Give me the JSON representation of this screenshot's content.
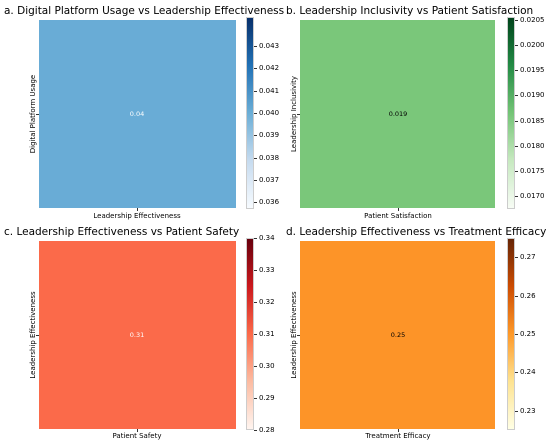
{
  "chart_data": [
    {
      "type": "heatmap",
      "title": "a. Digital Platform Usage vs Leadership Effectiveness",
      "xlabel": "Leadership Effectiveness",
      "ylabel": "Digital Platform Usage",
      "values": [
        [
          0.04
        ]
      ],
      "value_labels": [
        "0.04"
      ],
      "cell_color": "#69acd6",
      "value_text_color": "#ffffff",
      "colorbar": {
        "range": [
          0.0357,
          0.0443
        ],
        "ticks": [
          "0.043",
          "0.042",
          "0.041",
          "0.040",
          "0.039",
          "0.038",
          "0.037",
          "0.036"
        ],
        "tick_values": [
          0.043,
          0.042,
          0.041,
          0.04,
          0.039,
          0.038,
          0.037,
          0.036
        ],
        "gradient": [
          "#f7fbff",
          "#c6dbef",
          "#6baed6",
          "#2171b5",
          "#08306b"
        ]
      }
    },
    {
      "type": "heatmap",
      "title": "b. Leadership Inclusivity vs Patient Satisfaction",
      "xlabel": "Patient Satisfaction",
      "ylabel": "Leadership Inclusivity",
      "values": [
        [
          0.019
        ]
      ],
      "value_labels": [
        "0.019"
      ],
      "cell_color": "#7ac77a",
      "value_text_color": "#000000",
      "colorbar": {
        "range": [
          0.01675,
          0.02055
        ],
        "ticks": [
          "0.0205",
          "0.0200",
          "0.0195",
          "0.0190",
          "0.0185",
          "0.0180",
          "0.0175",
          "0.0170"
        ],
        "tick_values": [
          0.0205,
          0.02,
          0.0195,
          0.019,
          0.0185,
          0.018,
          0.0175,
          0.017
        ],
        "gradient": [
          "#f7fcf5",
          "#c7e9c0",
          "#74c476",
          "#238b45",
          "#00441b"
        ]
      }
    },
    {
      "type": "heatmap",
      "title": "c. Leadership Effectiveness vs Patient Safety",
      "xlabel": "Patient Safety",
      "ylabel": "Leadership Effectiveness",
      "values": [
        [
          0.31
        ]
      ],
      "value_labels": [
        "0.31"
      ],
      "cell_color": "#fb6a4a",
      "value_text_color": "#ffffff",
      "colorbar": {
        "range": [
          0.28,
          0.34
        ],
        "ticks": [
          "0.34",
          "0.33",
          "0.32",
          "0.31",
          "0.30",
          "0.29",
          "0.28"
        ],
        "tick_values": [
          0.34,
          0.33,
          0.32,
          0.31,
          0.3,
          0.29,
          0.28
        ],
        "gradient": [
          "#fff5f0",
          "#fcbba1",
          "#fb6a4a",
          "#cb181d",
          "#67000d"
        ]
      }
    },
    {
      "type": "heatmap",
      "title": "d. Leadership Effectiveness vs Treatment Efficacy",
      "xlabel": "Treatment Efficacy",
      "ylabel": "Leadership Effectiveness",
      "values": [
        [
          0.25
        ]
      ],
      "value_labels": [
        "0.25"
      ],
      "cell_color": "#fd9428",
      "value_text_color": "#000000",
      "colorbar": {
        "range": [
          0.225,
          0.275
        ],
        "ticks": [
          "0.27",
          "0.26",
          "0.25",
          "0.24",
          "0.23"
        ],
        "tick_values": [
          0.27,
          0.26,
          0.25,
          0.24,
          0.23
        ],
        "gradient": [
          "#ffffe5",
          "#fee391",
          "#fe9929",
          "#cc4c02",
          "#662506"
        ]
      }
    }
  ]
}
